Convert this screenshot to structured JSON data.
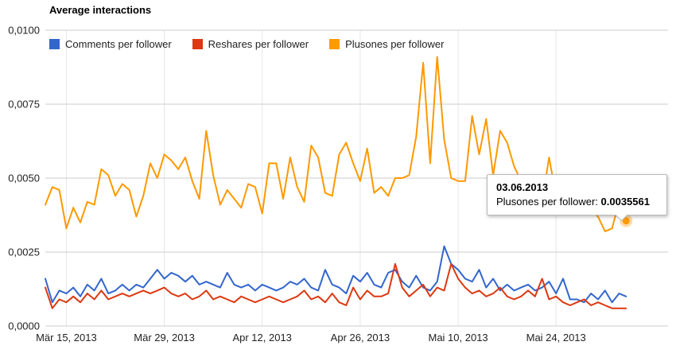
{
  "title": "Average interactions",
  "tooltip": {
    "date": "03.06.2013",
    "series_label": "Plusones per follower: ",
    "value": "0.0035561"
  },
  "colors": {
    "grid": "#cccccc",
    "grid_minor": "#e6e6e6",
    "axis_text": "#222222",
    "background": "#ffffff"
  },
  "chart_data": {
    "type": "line",
    "title": "Average interactions",
    "xlabel": "",
    "ylabel": "",
    "grid": true,
    "legend_position": "top",
    "ylim": [
      0,
      0.01
    ],
    "x_start_date": "2013-03-12",
    "x_total_days": 89,
    "yticks": [
      {
        "label": "0,0000",
        "value": 0
      },
      {
        "label": "0,0025",
        "value": 0.0025
      },
      {
        "label": "0,0050",
        "value": 0.005
      },
      {
        "label": "0,0075",
        "value": 0.0075
      },
      {
        "label": "0,0100",
        "value": 0.01
      }
    ],
    "xticks": [
      {
        "label": "Mär 15, 2013",
        "day": 3
      },
      {
        "label": "Mär 29, 2013",
        "day": 17
      },
      {
        "label": "Apr 12, 2013",
        "day": 31
      },
      {
        "label": "Apr 26, 2013",
        "day": 45
      },
      {
        "label": "Mai 10, 2013",
        "day": 59
      },
      {
        "label": "Mai 24, 2013",
        "day": 73
      }
    ],
    "series": [
      {
        "name": "Comments per follower",
        "color": "#3366cc",
        "values": [
          0.0016,
          0.0008,
          0.0012,
          0.0011,
          0.0013,
          0.001,
          0.0014,
          0.0012,
          0.0016,
          0.0011,
          0.0012,
          0.0014,
          0.0012,
          0.0014,
          0.0013,
          0.0016,
          0.0019,
          0.0016,
          0.0018,
          0.0017,
          0.0015,
          0.0017,
          0.0014,
          0.0015,
          0.0014,
          0.0013,
          0.0018,
          0.0014,
          0.0013,
          0.0014,
          0.0012,
          0.0014,
          0.0013,
          0.0012,
          0.0013,
          0.0015,
          0.0014,
          0.0016,
          0.0013,
          0.0012,
          0.0019,
          0.0014,
          0.0013,
          0.0011,
          0.0017,
          0.0015,
          0.0018,
          0.0014,
          0.0013,
          0.0018,
          0.0019,
          0.0015,
          0.0013,
          0.0017,
          0.0013,
          0.0012,
          0.0015,
          0.0027,
          0.0021,
          0.0019,
          0.0016,
          0.0015,
          0.0019,
          0.0013,
          0.0016,
          0.0012,
          0.0014,
          0.0012,
          0.0013,
          0.0014,
          0.0012,
          0.0013,
          0.0015,
          0.0011,
          0.0016,
          0.0009,
          0.0009,
          0.0008,
          0.0011,
          0.0009,
          0.0012,
          0.0008,
          0.0011,
          0.001
        ]
      },
      {
        "name": "Reshares per follower",
        "color": "#dc3912",
        "values": [
          0.0013,
          0.0006,
          0.0009,
          0.0008,
          0.001,
          0.0008,
          0.0011,
          0.0009,
          0.0012,
          0.0009,
          0.001,
          0.0011,
          0.001,
          0.0011,
          0.0012,
          0.0011,
          0.0012,
          0.0013,
          0.0011,
          0.001,
          0.0011,
          0.0009,
          0.001,
          0.0012,
          0.0009,
          0.001,
          0.0009,
          0.0008,
          0.001,
          0.0009,
          0.0008,
          0.0009,
          0.001,
          0.0009,
          0.0008,
          0.0009,
          0.001,
          0.0012,
          0.0009,
          0.001,
          0.0008,
          0.0011,
          0.0008,
          0.0007,
          0.0013,
          0.0009,
          0.0012,
          0.001,
          0.001,
          0.0011,
          0.0021,
          0.0013,
          0.001,
          0.0012,
          0.0014,
          0.001,
          0.0013,
          0.0012,
          0.0021,
          0.0016,
          0.0013,
          0.0011,
          0.0012,
          0.001,
          0.0011,
          0.0013,
          0.001,
          0.0009,
          0.001,
          0.0012,
          0.001,
          0.0016,
          0.0009,
          0.001,
          0.0008,
          0.0007,
          0.0008,
          0.0009,
          0.0007,
          0.0008,
          0.0007,
          0.0006,
          0.0006,
          0.0006
        ]
      },
      {
        "name": "Plusones per follower",
        "color": "#ff9900",
        "values": [
          0.0041,
          0.0047,
          0.0046,
          0.0033,
          0.004,
          0.0035,
          0.0042,
          0.0041,
          0.0053,
          0.0051,
          0.0044,
          0.0048,
          0.0046,
          0.0037,
          0.0044,
          0.0055,
          0.005,
          0.0058,
          0.0056,
          0.0053,
          0.0057,
          0.0049,
          0.0043,
          0.0066,
          0.0051,
          0.0041,
          0.0046,
          0.0043,
          0.004,
          0.0048,
          0.0047,
          0.0038,
          0.0055,
          0.0055,
          0.0043,
          0.0057,
          0.0047,
          0.0042,
          0.0061,
          0.0057,
          0.0045,
          0.0044,
          0.0058,
          0.0062,
          0.0055,
          0.0049,
          0.006,
          0.0045,
          0.0047,
          0.0044,
          0.005,
          0.005,
          0.0051,
          0.0064,
          0.0089,
          0.0055,
          0.0091,
          0.0063,
          0.005,
          0.0049,
          0.0049,
          0.0071,
          0.0058,
          0.007,
          0.0051,
          0.0066,
          0.0062,
          0.0054,
          0.0049,
          0.0041,
          0.0045,
          0.0042,
          0.0057,
          0.0044,
          0.0043,
          0.0039,
          0.0044,
          0.0043,
          0.0039,
          0.0037,
          0.0032,
          0.0033,
          0.0042,
          0.0035561
        ]
      }
    ],
    "highlight": {
      "series": "Plusones per follower",
      "series_index": 2,
      "index": 83,
      "value": 0.0035561,
      "date_label": "03.06.2013"
    }
  }
}
